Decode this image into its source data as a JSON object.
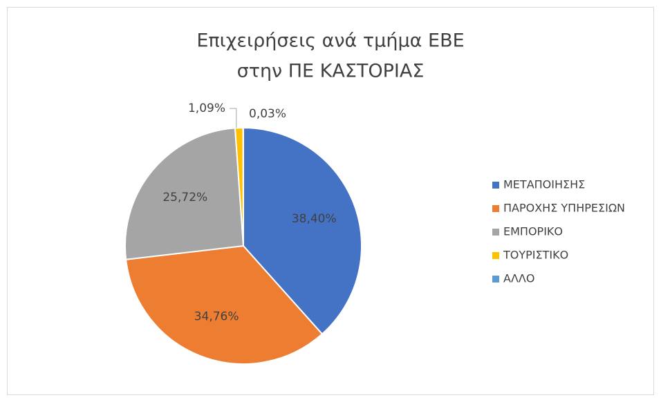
{
  "chart_data": {
    "type": "pie",
    "title": [
      "Επιχειρήσεις ανά τμήμα ΕΒΕ",
      "στην ΠΕ ΚΑΣΤΟΡΙΑΣ"
    ],
    "categories": [
      "ΜΕΤΑΠΟΙΗΣΗΣ",
      "ΠΑΡΟΧΗΣ ΥΠΗΡΕΣΙΩΝ",
      "ΕΜΠΟΡΙΚΟ",
      "ΤΟΥΡΙΣΤΙΚΟ",
      "ΑΛΛΟ"
    ],
    "values": [
      38.4,
      34.76,
      25.72,
      1.09,
      0.03
    ],
    "value_labels": [
      "38,40%",
      "34,76%",
      "25,72%",
      "1,09%",
      "0,03%"
    ],
    "colors": [
      "#4472c4",
      "#ed7d31",
      "#a5a5a5",
      "#ffc000",
      "#5b9bd5"
    ],
    "legend": "right"
  }
}
